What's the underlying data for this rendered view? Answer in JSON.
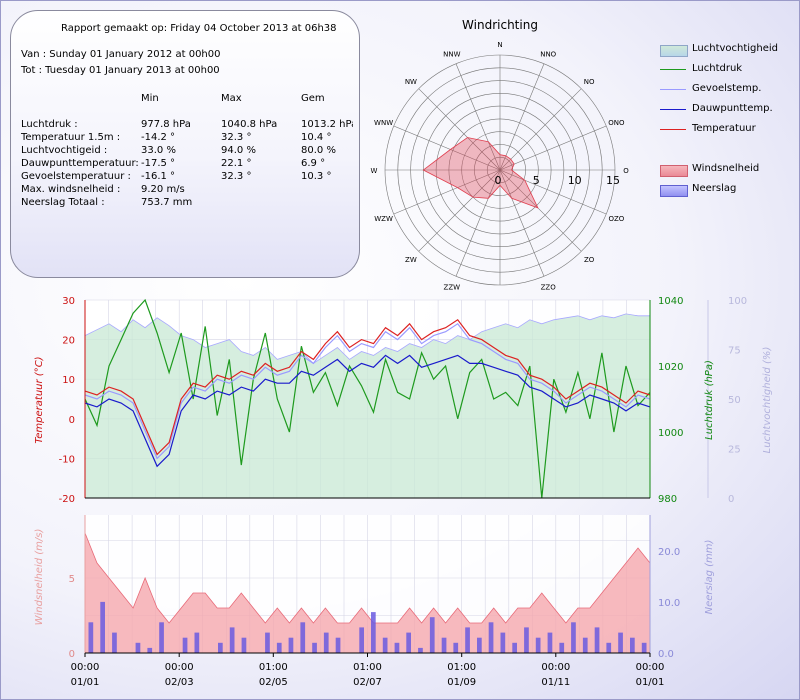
{
  "report": {
    "generated": "Rapport gemaakt op: Friday 04 October 2013 at 06h38",
    "period_from": "Van : Sunday 01 January 2012 at 00h00",
    "period_to": "Tot : Tuesday 01 January 2013 at 00h00",
    "col_min": "Min",
    "col_max": "Max",
    "col_avg": "Gem",
    "rows": [
      {
        "label": "Luchtdruk            :",
        "min": "977.8 hPa",
        "max": "1040.8 hPa",
        "avg": "1013.2 hPa"
      },
      {
        "label": "Temperatuur 1.5m    :",
        "min": "-14.2 °",
        "max": "32.3 °",
        "avg": "10.4 °"
      },
      {
        "label": "Luchtvochtigeid      :",
        "min": "33.0 %",
        "max": "94.0 %",
        "avg": "80.0 %"
      },
      {
        "label": "Dauwpunttemperatuur:",
        "min": "-17.5 °",
        "max": "22.1 °",
        "avg": "6.9 °"
      },
      {
        "label": "Gevoelstemperatuur  :",
        "min": "-16.1 °",
        "max": "32.3 °",
        "avg": "10.3 °"
      }
    ],
    "max_wind_label": "Max. windsnelheid   :",
    "max_wind_value": "9.20 m/s",
    "rain_total_label": "Neerslag Totaal     :",
    "rain_total_value": "753.7 mm"
  },
  "legend": {
    "items": [
      {
        "label": "Luchtvochtigheid",
        "kind": "area",
        "color": "#bfe3ce",
        "border": "#8fa6c8"
      },
      {
        "label": "Luchtdruk",
        "kind": "line",
        "color": "#1e9a1e"
      },
      {
        "label": "Gevoelstemp.",
        "kind": "line",
        "color": "#9a9aff"
      },
      {
        "label": "Dauwpunttemp.",
        "kind": "line",
        "color": "#1a1acc"
      },
      {
        "label": "Temperatuur",
        "kind": "line",
        "color": "#dd2222"
      },
      {
        "label": "Windsnelheid",
        "kind": "area",
        "color": "#f0a0a8",
        "border": "#d06070"
      },
      {
        "label": "Neerslag",
        "kind": "area",
        "color": "#a8a8ff",
        "border": "#6060d0"
      }
    ]
  },
  "chart_data": [
    {
      "type": "radar",
      "title": "Windrichting",
      "directions": [
        "N",
        "NNO",
        "NO",
        "ONO",
        "O",
        "OZO",
        "ZO",
        "ZZO",
        "Z",
        "ZZW",
        "ZW",
        "WZW",
        "W",
        "WNW",
        "NW",
        "NNW"
      ],
      "values": [
        2,
        2,
        2,
        2,
        1.5,
        3.5,
        7,
        4,
        2,
        4,
        5,
        6,
        10,
        7,
        6,
        4
      ],
      "radial_ticks": [
        0,
        5,
        10,
        15
      ],
      "rmax": 15,
      "color": "#e04050"
    },
    {
      "type": "line",
      "x_ticks": [
        {
          "top": "00:00",
          "bottom": "01/01"
        },
        {
          "top": "00:00",
          "bottom": "02/03"
        },
        {
          "top": "01:00",
          "bottom": "02/05"
        },
        {
          "top": "01:00",
          "bottom": "02/07"
        },
        {
          "top": "01:00",
          "bottom": "01/09"
        },
        {
          "top": "00:00",
          "bottom": "01/11"
        },
        {
          "top": "00:00",
          "bottom": "01/01"
        }
      ],
      "y_left": {
        "label": "Temperatuur (°C)",
        "ticks": [
          -20,
          -10,
          0,
          10,
          20,
          30
        ],
        "range": [
          -20,
          30
        ],
        "color": "#cc1111"
      },
      "y_right1": {
        "label": "Luchtdruk (hPa)",
        "ticks": [
          980,
          1000,
          1020,
          1040
        ],
        "range": [
          980,
          1040
        ],
        "color": "#118811"
      },
      "y_right2": {
        "label": "Luchtvochtigheid (%)",
        "ticks": [
          0,
          25,
          50,
          75,
          100
        ],
        "range": [
          0,
          100
        ],
        "color": "#a8a8d8"
      },
      "series": [
        {
          "name": "Temperatuur",
          "axis": "left",
          "color": "#dd2222",
          "values": [
            7,
            6,
            8,
            7,
            5,
            -2,
            -9,
            -6,
            5,
            9,
            8,
            11,
            10,
            12,
            11,
            14,
            12,
            13,
            17,
            15,
            19,
            22,
            18,
            20,
            19,
            23,
            21,
            24,
            20,
            22,
            23,
            25,
            21,
            20,
            18,
            16,
            15,
            11,
            10,
            8,
            5,
            7,
            9,
            8,
            6,
            4,
            7,
            6
          ]
        },
        {
          "name": "Dauwpunttemp.",
          "axis": "left",
          "color": "#1a1acc",
          "values": [
            4,
            3,
            5,
            4,
            2,
            -5,
            -12,
            -9,
            2,
            6,
            5,
            7,
            6,
            8,
            7,
            10,
            9,
            9,
            12,
            11,
            13,
            15,
            12,
            14,
            13,
            16,
            14,
            16,
            13,
            14,
            15,
            16,
            14,
            14,
            13,
            12,
            11,
            8,
            7,
            5,
            3,
            4,
            6,
            5,
            4,
            2,
            4,
            3
          ]
        },
        {
          "name": "Gevoelstemp.",
          "axis": "left",
          "color": "#9a9aff",
          "values": [
            6,
            5,
            7,
            6,
            4,
            -3,
            -10,
            -7,
            4,
            8,
            7,
            10,
            9,
            11,
            10,
            13,
            11,
            12,
            16,
            14,
            18,
            21,
            17,
            19,
            18,
            22,
            20,
            23,
            19,
            21,
            22,
            24,
            20,
            19,
            17,
            15,
            14,
            10,
            9,
            7,
            4,
            6,
            8,
            7,
            5,
            3,
            6,
            5
          ]
        },
        {
          "name": "Luchtdruk",
          "axis": "right1",
          "color": "#1e9a1e",
          "values": [
            1010,
            1002,
            1020,
            1028,
            1036,
            1040,
            1030,
            1018,
            1030,
            1010,
            1032,
            1005,
            1022,
            990,
            1016,
            1030,
            1010,
            1000,
            1026,
            1012,
            1018,
            1008,
            1020,
            1014,
            1006,
            1022,
            1012,
            1010,
            1024,
            1016,
            1020,
            1004,
            1018,
            1022,
            1010,
            1012,
            1008,
            1020,
            980,
            1016,
            1006,
            1018,
            1004,
            1024,
            1000,
            1020,
            1008,
            1012
          ]
        },
        {
          "name": "Luchtvochtigheid",
          "axis": "right2",
          "color": "#a8a8ff",
          "values": [
            82,
            85,
            88,
            84,
            90,
            86,
            91,
            87,
            82,
            80,
            76,
            78,
            80,
            74,
            72,
            76,
            70,
            72,
            74,
            68,
            72,
            76,
            70,
            74,
            72,
            76,
            74,
            78,
            76,
            80,
            78,
            82,
            80,
            84,
            86,
            88,
            86,
            90,
            88,
            90,
            91,
            92,
            90,
            92,
            91,
            93,
            92,
            92
          ]
        }
      ]
    },
    {
      "type": "area",
      "y_left": {
        "label": "Windsnelheid (m/s)",
        "ticks": [
          0,
          5
        ],
        "range": [
          0,
          9.2
        ],
        "color": "#e08080"
      },
      "y_right": {
        "label": "Neerslag (mm)",
        "ticks": [
          0.0,
          10.0,
          20.0
        ],
        "range": [
          0,
          27
        ],
        "color": "#8080d0"
      },
      "series": [
        {
          "name": "Windsnelheid",
          "axis": "left",
          "color": "#f08080",
          "values": [
            8,
            6,
            5,
            4,
            3,
            5,
            3,
            2,
            3,
            4,
            4,
            3,
            3,
            4,
            3,
            2,
            3,
            2,
            3,
            2,
            3,
            2,
            2,
            3,
            2,
            2,
            2,
            3,
            2,
            3,
            2,
            3,
            2,
            2,
            3,
            2,
            3,
            3,
            4,
            3,
            2,
            3,
            3,
            4,
            5,
            6,
            7,
            6
          ]
        },
        {
          "name": "Neerslag",
          "axis": "right",
          "color": "#6a5ae0",
          "values": [
            6,
            10,
            4,
            0,
            2,
            1,
            6,
            0,
            3,
            4,
            0,
            2,
            5,
            3,
            0,
            4,
            2,
            3,
            6,
            2,
            4,
            3,
            0,
            5,
            8,
            3,
            2,
            4,
            1,
            7,
            3,
            2,
            5,
            3,
            6,
            4,
            2,
            5,
            3,
            4,
            2,
            6,
            3,
            5,
            2,
            4,
            3,
            2
          ]
        }
      ]
    }
  ]
}
